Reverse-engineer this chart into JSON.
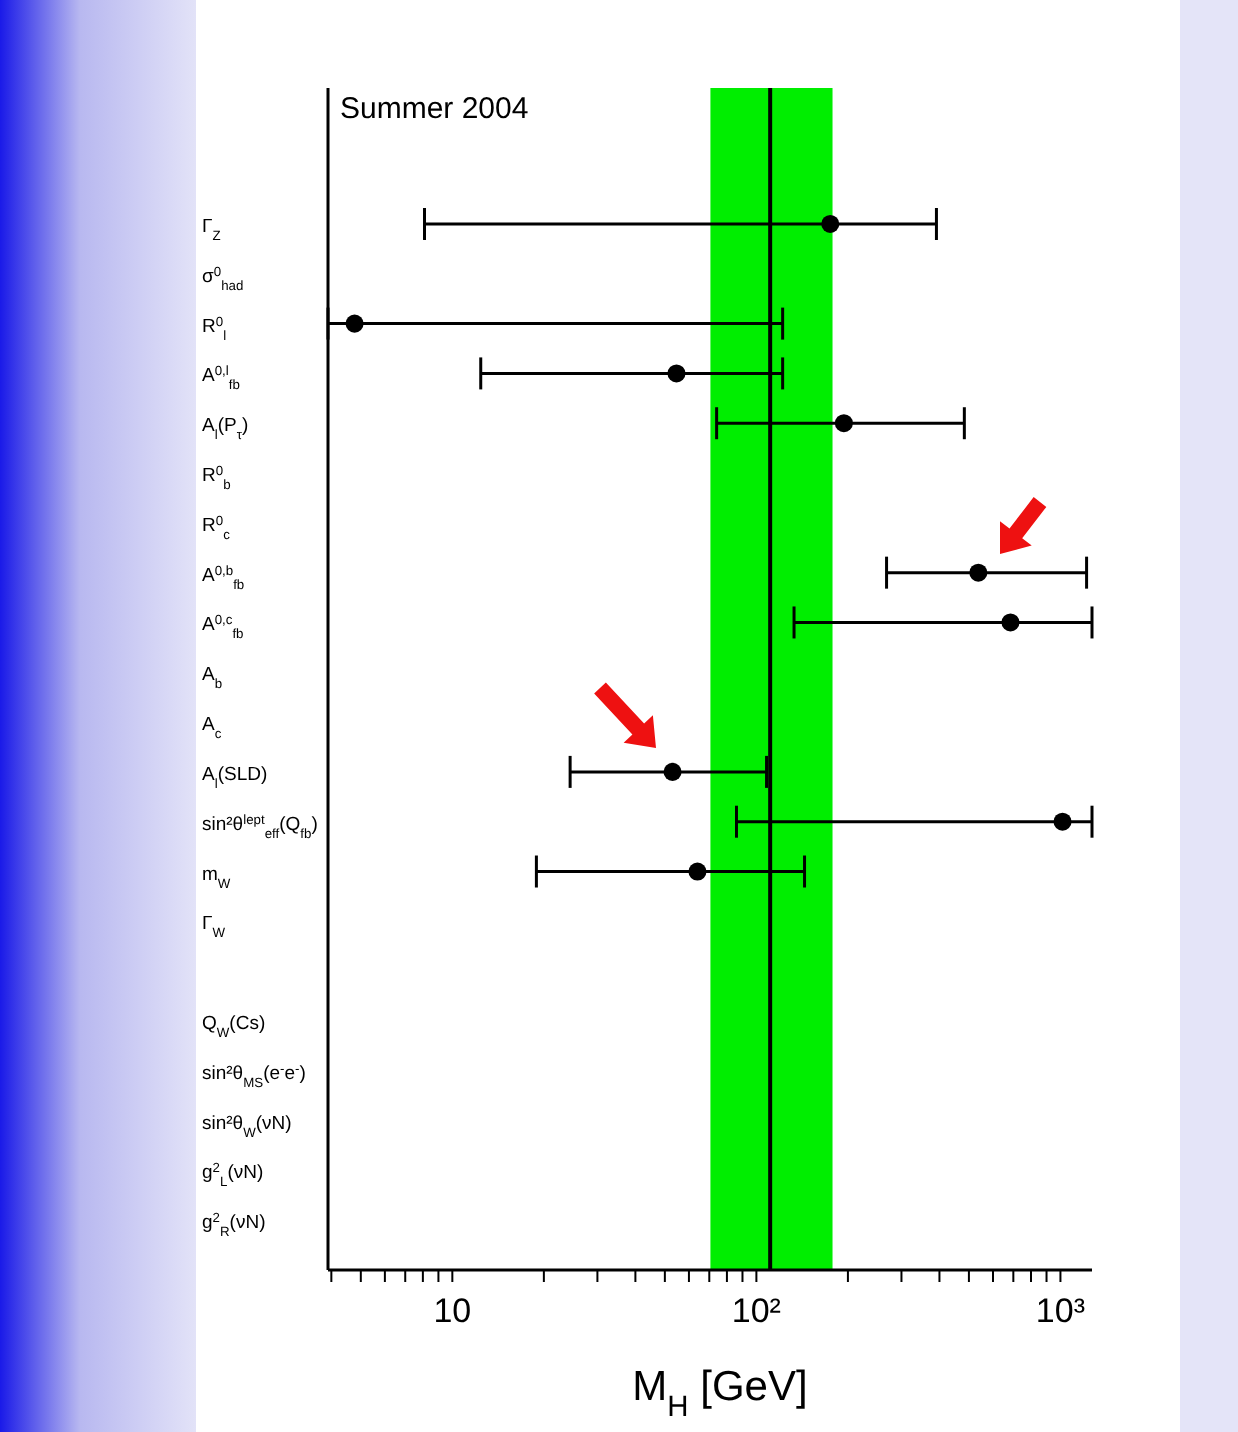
{
  "chart_data": {
    "type": "scatter",
    "orientation": "horizontal",
    "annotations": [
      "Summer 2004"
    ],
    "xlabel": "M$_{H}$  [GeV]",
    "categories": [
      "Γ$_{Z}$",
      "σ$^{0}$$_{had}$",
      "R$^{0}$$_{l}$",
      "A$^{0,l}$$_{fb}$",
      "A$_{l}$(P$_{τ}$)",
      "R$^{0}$$_{b}$",
      "R$^{0}$$_{c}$",
      "A$^{0,b}$$_{fb}$",
      "A$^{0,c}$$_{fb}$",
      "A$_{b}$",
      "A$_{c}$",
      "A$_{l}$(SLD)",
      "sin²θ$^{lept}$$_{eff}$(Q$_{fb}$)",
      "m$_{W}$",
      "Γ$_{W}$",
      null,
      "Q$_{W}$(Cs)",
      "sin²θ$_{MS}$(e$^{-}$e$^{-}$)",
      "sin²θ$_{W}$(νN)",
      "g$^{2}$$_{L}$(νN)",
      "g$^{2}$$_{R}$(νN)"
    ],
    "values": [
      175,
      null,
      4.77,
      54.6,
      194,
      null,
      null,
      537,
      685,
      null,
      null,
      53,
      1016,
      64,
      null,
      null,
      null,
      null,
      null,
      null,
      null
    ],
    "errors": [
      [
        8.1,
        391
      ],
      null,
      [
        3.9,
        122
      ],
      [
        12.4,
        122
      ],
      [
        74,
        483
      ],
      null,
      null,
      [
        268,
        1219
      ],
      [
        133,
        1270
      ],
      null,
      null,
      [
        24.4,
        108
      ],
      [
        86,
        1270
      ],
      [
        18.9,
        144
      ],
      null,
      null,
      null,
      null,
      null,
      null,
      null
    ],
    "color": "#000000",
    "marker": "circle",
    "log": "x",
    "xlim": [
      3.9,
      1270
    ],
    "xticks": [
      {
        "value": 4,
        "label": null
      },
      {
        "value": 5,
        "label": null
      },
      {
        "value": 6,
        "label": null
      },
      {
        "value": 7,
        "label": null
      },
      {
        "value": 8,
        "label": null
      },
      {
        "value": 9,
        "label": null
      },
      10,
      {
        "value": 20,
        "label": null
      },
      {
        "value": 30,
        "label": null
      },
      {
        "value": 40,
        "label": null
      },
      {
        "value": 50,
        "label": null
      },
      {
        "value": 60,
        "label": null
      },
      {
        "value": 70,
        "label": null
      },
      {
        "value": 80,
        "label": null
      },
      {
        "value": 90,
        "label": null
      },
      {
        "value": 100,
        "label": "10²"
      },
      {
        "value": 200,
        "label": null
      },
      {
        "value": 300,
        "label": null
      },
      {
        "value": 400,
        "label": null
      },
      {
        "value": 500,
        "label": null
      },
      {
        "value": 600,
        "label": null
      },
      {
        "value": 700,
        "label": null
      },
      {
        "value": 800,
        "label": null
      },
      {
        "value": 900,
        "label": null
      },
      {
        "value": 1000,
        "label": "10³"
      }
    ],
    "ref_lines": [
      {
        "axis": "x",
        "value": 111,
        "color": "#000000"
      }
    ],
    "bands": [
      {
        "axis": "x",
        "from": 70.6,
        "to": 178,
        "color": "#00ee00"
      }
    ],
    "grid": false,
    "legend": false
  }
}
